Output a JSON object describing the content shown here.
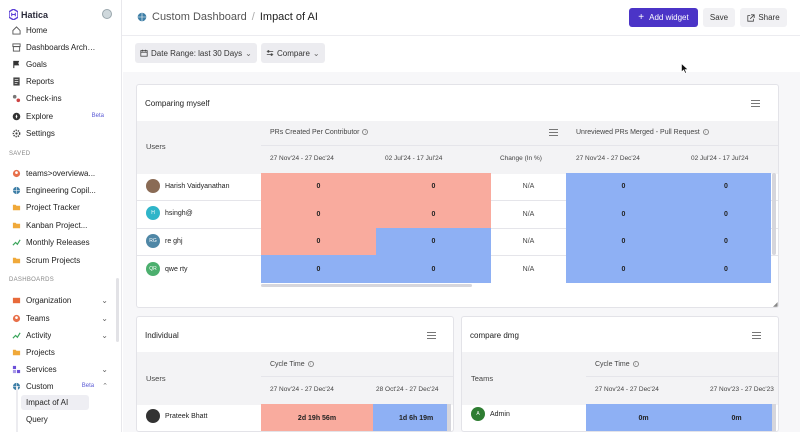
{
  "app": {
    "logo_text": "Hatica"
  },
  "sidebar": {
    "main_items": [
      {
        "label": "Home",
        "icon": "home-icon"
      },
      {
        "label": "Dashboards Archive",
        "icon": "archive-icon"
      },
      {
        "label": "Goals",
        "icon": "flag-icon"
      },
      {
        "label": "Reports",
        "icon": "report-icon"
      },
      {
        "label": "Check-ins",
        "icon": "checkins-icon"
      },
      {
        "label": "Explore",
        "icon": "compass-icon",
        "badge": "Beta"
      },
      {
        "label": "Settings",
        "icon": "gear-icon"
      }
    ],
    "saved_label": "SAVED",
    "saved_items": [
      {
        "label": "teams>overviewa..."
      },
      {
        "label": "Engineering Copil..."
      },
      {
        "label": "Project Tracker"
      },
      {
        "label": "Kanban Project..."
      },
      {
        "label": "Monthly Releases"
      },
      {
        "label": "Scrum Projects"
      }
    ],
    "dashboards_label": "DASHBOARDS",
    "dashboard_items": [
      {
        "label": "Organization"
      },
      {
        "label": "Teams"
      },
      {
        "label": "Activity"
      },
      {
        "label": "Projects"
      },
      {
        "label": "Services"
      },
      {
        "label": "Custom",
        "badge": "Beta"
      }
    ],
    "custom_sub_items": [
      {
        "label": "Impact of AI"
      },
      {
        "label": "Query"
      }
    ]
  },
  "header": {
    "breadcrumb_root": "Custom Dashboard",
    "separator": "/",
    "title": "Impact of AI",
    "add_widget_label": "Add widget",
    "save_label": "Save",
    "share_label": "Share"
  },
  "filters": {
    "date_range": "Date Range: last 30 Days",
    "compare": "Compare"
  },
  "widget_main": {
    "title": "Comparing myself",
    "users_header": "Users",
    "metric1": "PRs Created Per Contributor",
    "metric2": "Unreviewed PRs Merged - Pull Request",
    "periods": [
      "27 Nov'24 - 27 Dec'24",
      "02 Jul'24 - 17 Jul'24",
      "Change (In %)",
      "27 Nov'24 - 27 Dec'24",
      "02 Jul'24 - 17 Jul'24"
    ],
    "rows": [
      {
        "name": "Harish Vaidyanathan",
        "initials": "",
        "values": [
          "0",
          "0",
          "N/A",
          "0",
          "0"
        ]
      },
      {
        "name": "hsingh@",
        "initials": "H",
        "values": [
          "0",
          "0",
          "N/A",
          "0",
          "0"
        ]
      },
      {
        "name": "re ghj",
        "initials": "RG",
        "values": [
          "0",
          "0",
          "N/A",
          "0",
          "0"
        ]
      },
      {
        "name": "qwe rty",
        "initials": "QR",
        "values": [
          "0",
          "0",
          "N/A",
          "0",
          "0"
        ]
      }
    ]
  },
  "widget_individual": {
    "title": "Individual",
    "users_header": "Users",
    "metric": "Cycle Time",
    "periods": [
      "27 Nov'24 - 27 Dec'24",
      "28 Oct'24 - 27 Dec'24"
    ],
    "first_row": {
      "name": "Prateek Bhatt",
      "values": [
        "2d 19h 56m",
        "1d 6h 19m"
      ]
    }
  },
  "widget_compare": {
    "title": "compare dmg",
    "teams_header": "Teams",
    "metric": "Cycle Time",
    "periods": [
      "27 Nov'24 - 27 Dec'24",
      "27 Nov'23 - 27 Dec'23"
    ],
    "first_row": {
      "name": "Admin",
      "initials": "A",
      "values": [
        "0m",
        "0m"
      ]
    }
  },
  "colors": {
    "accent": "#4b34c7",
    "pink_cell": "#f9ab9e",
    "blue_cell": "#8eb0f4"
  }
}
